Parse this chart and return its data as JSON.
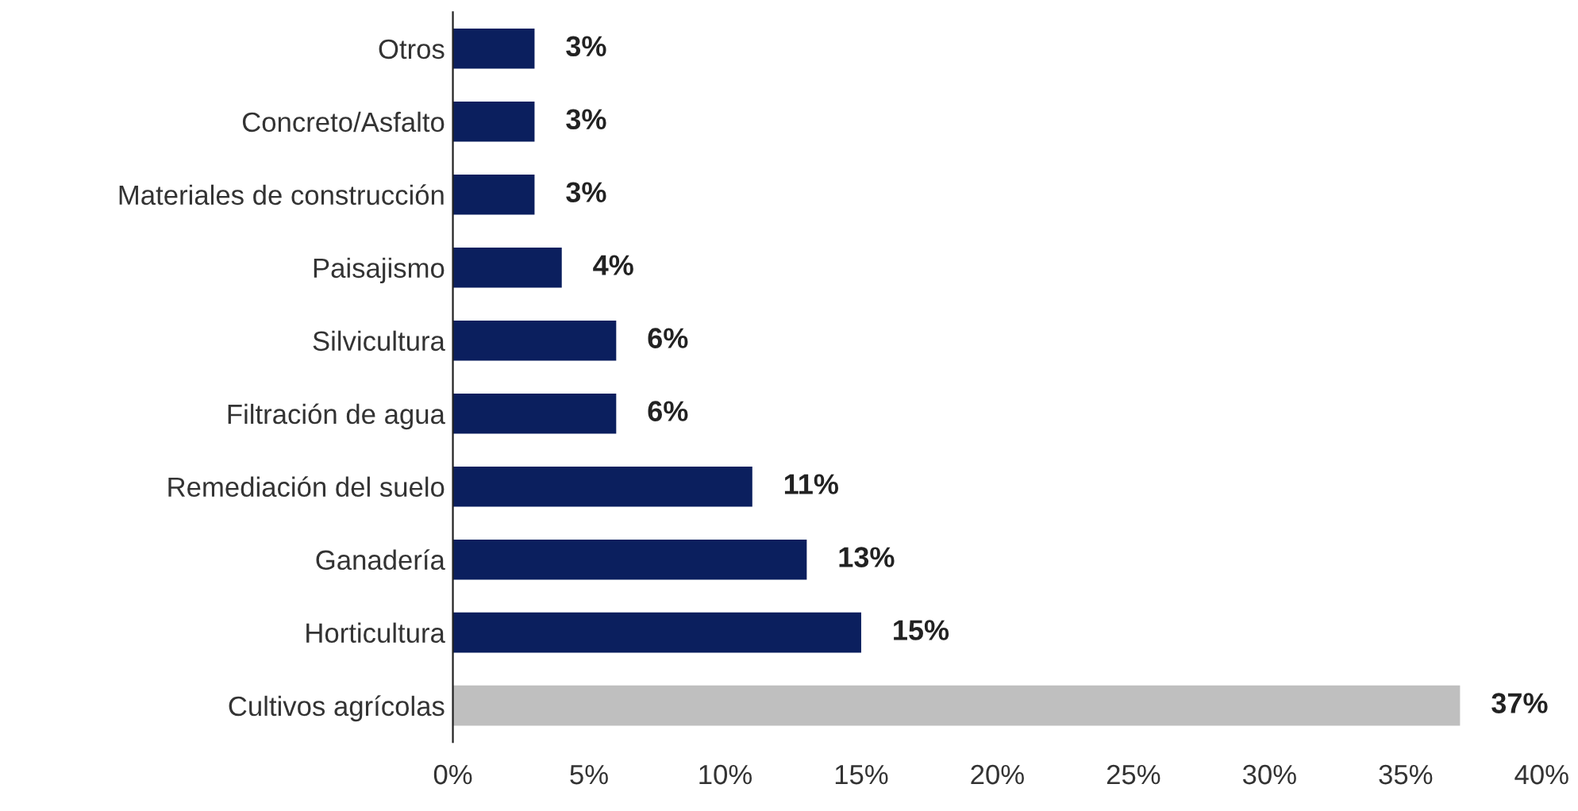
{
  "chart_data": {
    "type": "bar",
    "orientation": "horizontal",
    "categories": [
      "Otros",
      "Concreto/Asfalto",
      "Materiales de construcción",
      "Paisajismo",
      "Silvicultura",
      "Filtración de agua",
      "Remediación del suelo",
      "Ganadería",
      "Horticultura",
      "Cultivos agrícolas"
    ],
    "values": [
      3,
      3,
      3,
      4,
      6,
      6,
      11,
      13,
      15,
      37
    ],
    "colors": [
      "#0b1f5e",
      "#0b1f5e",
      "#0b1f5e",
      "#0b1f5e",
      "#0b1f5e",
      "#0b1f5e",
      "#0b1f5e",
      "#0b1f5e",
      "#0b1f5e",
      "#bfbfbf"
    ],
    "value_labels": [
      "3%",
      "3%",
      "3%",
      "4%",
      "6%",
      "6%",
      "11%",
      "13%",
      "15%",
      "37%"
    ],
    "xlim": [
      0,
      40
    ],
    "xticks": [
      {
        "value": 0,
        "label": "0%"
      },
      {
        "value": 5,
        "label": "5%"
      },
      {
        "value": 10,
        "label": "10%"
      },
      {
        "value": 15,
        "label": "15%"
      },
      {
        "value": 20,
        "label": "20%"
      },
      {
        "value": 25,
        "label": "25%"
      },
      {
        "value": 30,
        "label": "30%"
      },
      {
        "value": 35,
        "label": "35%"
      },
      {
        "value": 40,
        "label": "40%"
      }
    ],
    "grid": false,
    "legend": false
  }
}
